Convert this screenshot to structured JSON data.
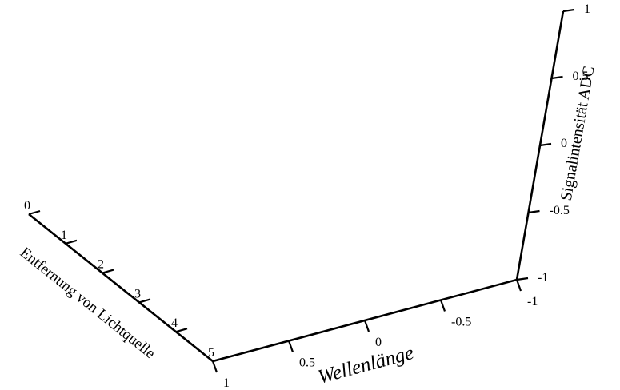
{
  "chart_data": {
    "type": "line",
    "projection": "3d",
    "grid": false,
    "series": [],
    "axes": {
      "distance": {
        "label": "Entfernung von Lichtquelle",
        "ticks": [
          "0",
          "1",
          "2",
          "3",
          "4",
          "5"
        ],
        "range": [
          0,
          5
        ]
      },
      "wavelength": {
        "label": "Wellenlänge",
        "ticks": [
          "1",
          "0.5",
          "0",
          "-0.5",
          "-1"
        ],
        "range": [
          1,
          -1
        ]
      },
      "intensity": {
        "label": "Signalintensität ADC",
        "ticks": [
          "-1",
          "-0.5",
          "0",
          "0.5",
          "1"
        ],
        "range": [
          -1,
          1
        ]
      }
    }
  }
}
